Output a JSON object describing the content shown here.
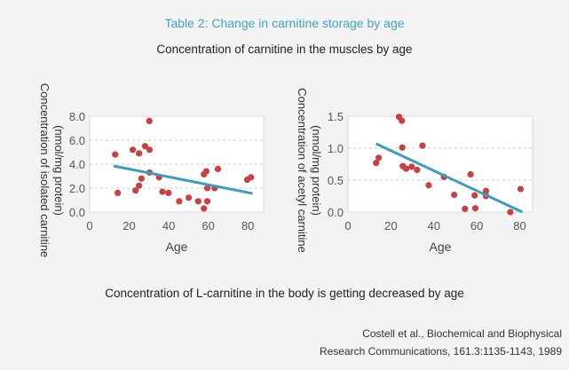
{
  "title": "Table 2: Change in carnitine storage by age",
  "subtitle": "Concentration of carnitine in the muscles by age",
  "conclusion": "Concentration of L-carnitine in the body is getting decreased by age",
  "citation": [
    "Costell et al., Biochemical and Biophysical",
    "Research Communications, 161.3:1135-1143, 1989"
  ],
  "colors": {
    "title": "#3fa3c9",
    "points": "#c9403f",
    "trend": "#3a9dbf",
    "grid": "#bbbbbb"
  },
  "chart_data": [
    {
      "type": "scatter",
      "xlabel": "Age",
      "ylabel": [
        "Concentration of isolated carnitine",
        "(nmol/mg protein)"
      ],
      "xlim": [
        0,
        88
      ],
      "ylim": [
        0,
        8
      ],
      "xticks": [
        "0",
        "20",
        "40",
        "60",
        "80"
      ],
      "xtick_values": [
        0,
        20,
        40,
        60,
        80
      ],
      "yticks": [
        "0.0",
        "2.0",
        "4.0",
        "6.0",
        "8.0"
      ],
      "ytick_values": [
        0,
        2,
        4,
        6,
        8
      ],
      "grid": "horizontal dashed",
      "points": [
        [
          12.9,
          4.8
        ],
        [
          14.2,
          1.6
        ],
        [
          21.8,
          5.2
        ],
        [
          25,
          4.9
        ],
        [
          23.2,
          1.8
        ],
        [
          25,
          2.2
        ],
        [
          26.2,
          2.8
        ],
        [
          28,
          5.5
        ],
        [
          30.3,
          5.2
        ],
        [
          30.2,
          7.6
        ],
        [
          30.3,
          3.3
        ],
        [
          35.1,
          2.9
        ],
        [
          36.8,
          1.7
        ],
        [
          39.9,
          1.6
        ],
        [
          45.3,
          0.9
        ],
        [
          50.1,
          1.2
        ],
        [
          54.9,
          0.9
        ],
        [
          57.8,
          0.3
        ],
        [
          57.8,
          3.15
        ],
        [
          59,
          3.4
        ],
        [
          59.5,
          2.0
        ],
        [
          59.5,
          0.9
        ],
        [
          63.2,
          2.0
        ],
        [
          64.9,
          3.6
        ],
        [
          79.7,
          2.7
        ],
        [
          81.6,
          2.9
        ]
      ],
      "trendline": [
        [
          12.1,
          3.85
        ],
        [
          82.4,
          1.55
        ]
      ]
    },
    {
      "type": "scatter",
      "xlabel": "Age",
      "ylabel": [
        "Concentration of acetyl carnitine",
        "(nmol/mg protein)"
      ],
      "xlim": [
        0,
        86
      ],
      "ylim": [
        0,
        1.5
      ],
      "xticks": [
        "0",
        "20",
        "40",
        "60",
        "80"
      ],
      "xtick_values": [
        0,
        20,
        40,
        60,
        80
      ],
      "yticks": [
        "0.0",
        "0.5",
        "1.0",
        "1.5"
      ],
      "ytick_values": [
        0,
        0.5,
        1,
        1.5
      ],
      "grid": "horizontal dashed",
      "points": [
        [
          13.1,
          0.77
        ],
        [
          14.3,
          0.85
        ],
        [
          23.8,
          1.49
        ],
        [
          25.1,
          1.43
        ],
        [
          25.3,
          1.01
        ],
        [
          25.5,
          0.72
        ],
        [
          27.1,
          0.68
        ],
        [
          29.7,
          0.71
        ],
        [
          32.2,
          0.66
        ],
        [
          34.7,
          1.04
        ],
        [
          37.6,
          0.42
        ],
        [
          44.7,
          0.55
        ],
        [
          49.5,
          0.27
        ],
        [
          54.5,
          0.05
        ],
        [
          57.1,
          0.59
        ],
        [
          59,
          0.26
        ],
        [
          59.3,
          0.06
        ],
        [
          64.3,
          0.33
        ],
        [
          64.3,
          0.25
        ],
        [
          75.6,
          -0.03
        ],
        [
          80.4,
          0.36
        ]
      ],
      "trendline": [
        [
          13.1,
          1.07
        ],
        [
          81.2,
          0.0
        ]
      ]
    }
  ]
}
